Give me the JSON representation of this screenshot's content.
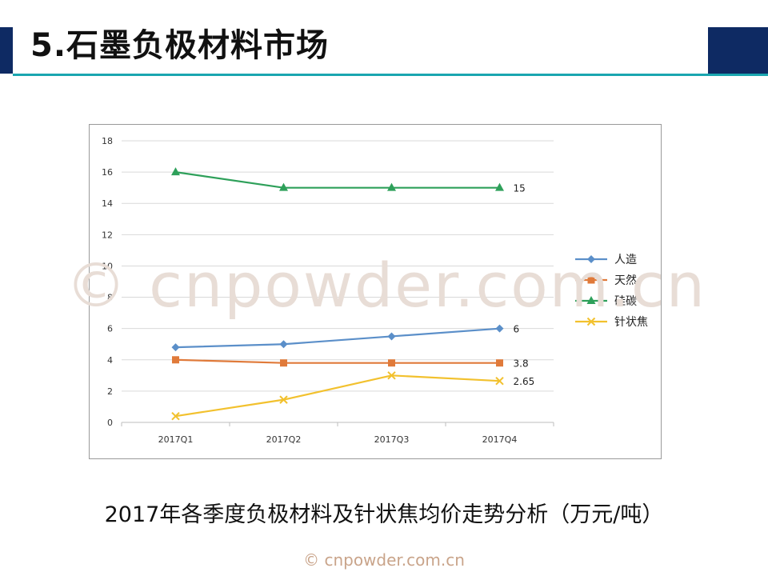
{
  "slide": {
    "title": "5.石墨负极材料市场",
    "caption": "2017年各季度负极材料及针状焦均价走势分析（万元/吨）",
    "watermark_center": "© cnpowder.com.cn",
    "watermark_footer": "© cnpowder.com.cn",
    "colors": {
      "header_bar": "#0e2a63",
      "header_rule": "#1aa6b0"
    }
  },
  "chart_data": {
    "type": "line",
    "categories": [
      "2017Q1",
      "2017Q2",
      "2017Q3",
      "2017Q4"
    ],
    "ylim": [
      0,
      18
    ],
    "yticks": [
      0,
      2,
      4,
      6,
      8,
      10,
      12,
      14,
      16,
      18
    ],
    "grid": true,
    "legend_position": "right",
    "series": [
      {
        "name": "人造",
        "values": [
          4.8,
          5.0,
          5.5,
          6
        ],
        "color": "#5b8fc9",
        "marker": "diamond",
        "end_label": "6"
      },
      {
        "name": "天然",
        "values": [
          4.0,
          3.8,
          3.8,
          3.8
        ],
        "color": "#e07a3a",
        "marker": "square",
        "end_label": "3.8"
      },
      {
        "name": "硅碳",
        "values": [
          16,
          15,
          15,
          15
        ],
        "color": "#2ea05a",
        "marker": "triangle",
        "end_label": "15"
      },
      {
        "name": "针状焦",
        "values": [
          0.4,
          1.45,
          3.0,
          2.65
        ],
        "color": "#f2c12e",
        "marker": "x",
        "end_label": "2.65"
      }
    ]
  }
}
